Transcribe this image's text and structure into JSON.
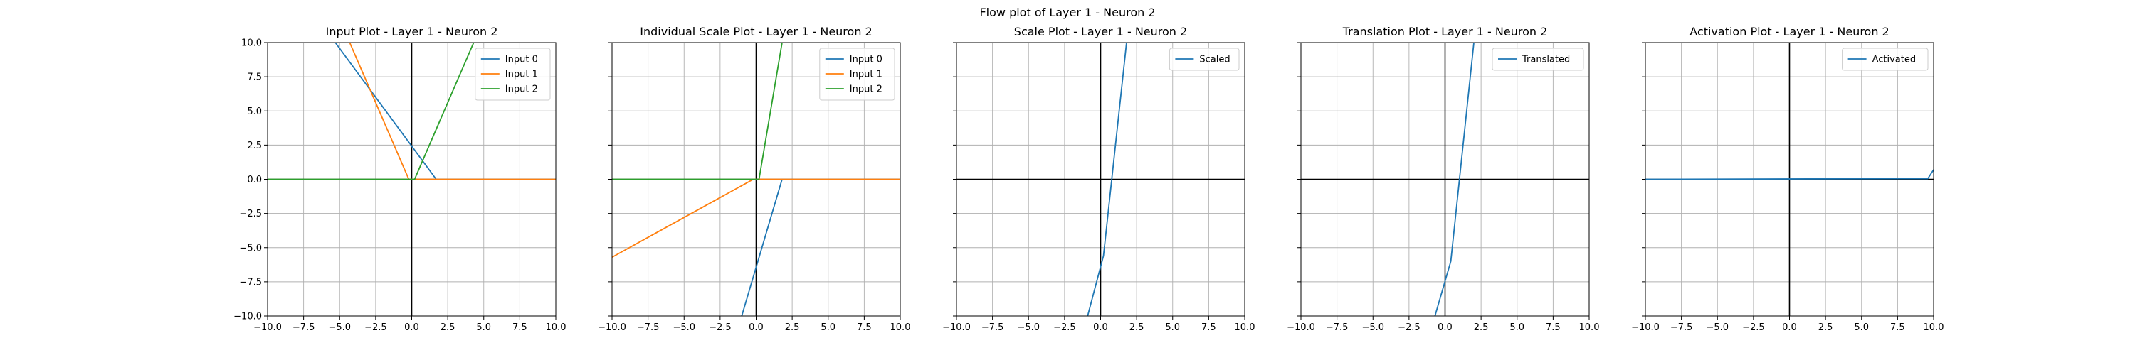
{
  "figure": {
    "suptitle": "Flow plot of Layer 1 - Neuron 2"
  },
  "colors": {
    "blue": "#1f77b4",
    "orange": "#ff7f0e",
    "green": "#2ca02c",
    "grid": "#b0b0b0",
    "axis_zero": "#000000"
  },
  "chart_data": [
    {
      "type": "line",
      "title": "Input Plot - Layer 1 - Neuron 2",
      "xlim": [
        -10,
        10
      ],
      "ylim": [
        -10,
        10
      ],
      "xticks": [
        "−10.0",
        "−7.5",
        "−5.0",
        "−2.5",
        "0.0",
        "2.5",
        "5.0",
        "7.5",
        "10.0"
      ],
      "yticks": [
        "−10.0",
        "−7.5",
        "−5.0",
        "−2.5",
        "0.0",
        "2.5",
        "5.0",
        "7.5",
        "10.0"
      ],
      "grid": true,
      "legend": "top-right",
      "series": [
        {
          "name": "Input 0",
          "color": "#1f77b4",
          "x": [
            -10,
            -5.3,
            1.7,
            10
          ],
          "y": [
            19,
            10,
            0,
            0
          ]
        },
        {
          "name": "Input 1",
          "color": "#ff7f0e",
          "x": [
            -10,
            -4.3,
            -0.2,
            10
          ],
          "y": [
            25,
            10,
            0,
            0
          ]
        },
        {
          "name": "Input 2",
          "color": "#2ca02c",
          "x": [
            -10,
            0.2,
            4.3,
            10
          ],
          "y": [
            0,
            0,
            10,
            24
          ]
        }
      ]
    },
    {
      "type": "line",
      "title": "Individual Scale Plot - Layer 1 - Neuron 2",
      "xlim": [
        -10,
        10
      ],
      "ylim": [
        -10,
        10
      ],
      "xticks": [
        "−10.0",
        "−7.5",
        "−5.0",
        "−2.5",
        "0.0",
        "2.5",
        "5.0",
        "7.5",
        "10.0"
      ],
      "yticks": [],
      "grid": true,
      "legend": "top-right",
      "series": [
        {
          "name": "Input 0",
          "color": "#1f77b4",
          "x": [
            -1.0,
            1.8,
            10
          ],
          "y": [
            -10,
            0,
            0
          ]
        },
        {
          "name": "Input 1",
          "color": "#ff7f0e",
          "x": [
            -10,
            -0.2,
            10
          ],
          "y": [
            -5.7,
            0,
            0
          ]
        },
        {
          "name": "Input 2",
          "color": "#2ca02c",
          "x": [
            -10,
            0.2,
            1.8
          ],
          "y": [
            0,
            0,
            10
          ]
        }
      ]
    },
    {
      "type": "line",
      "title": "Scale Plot - Layer 1 - Neuron 2",
      "xlim": [
        -10,
        10
      ],
      "ylim": [
        -10,
        10
      ],
      "xticks": [
        "−10.0",
        "−7.5",
        "−5.0",
        "−2.5",
        "0.0",
        "2.5",
        "5.0",
        "7.5",
        "10.0"
      ],
      "yticks": [],
      "grid": true,
      "legend": "top-right",
      "series": [
        {
          "name": "Scaled",
          "color": "#1f77b4",
          "x": [
            -0.9,
            0.2,
            1.8
          ],
          "y": [
            -10,
            -5.6,
            10
          ]
        }
      ]
    },
    {
      "type": "line",
      "title": "Translation Plot - Layer 1 - Neuron 2",
      "xlim": [
        -10,
        10
      ],
      "ylim": [
        -10,
        10
      ],
      "xticks": [
        "−10.0",
        "−7.5",
        "−5.0",
        "−2.5",
        "0.0",
        "2.5",
        "5.0",
        "7.5",
        "10.0"
      ],
      "yticks": [],
      "grid": true,
      "legend": "top-right",
      "series": [
        {
          "name": "Translated",
          "color": "#1f77b4",
          "x": [
            -0.7,
            0.4,
            2.0
          ],
          "y": [
            -10,
            -6.0,
            10
          ]
        }
      ]
    },
    {
      "type": "line",
      "title": "Activation Plot - Layer 1 - Neuron 2",
      "xlim": [
        -10,
        10
      ],
      "ylim": [
        -10,
        10
      ],
      "xticks": [
        "−10.0",
        "−7.5",
        "−5.0",
        "−2.5",
        "0.0",
        "2.5",
        "5.0",
        "7.5",
        "10.0"
      ],
      "yticks": [],
      "grid": true,
      "legend": "top-right",
      "series": [
        {
          "name": "Activated",
          "color": "#1f77b4",
          "x": [
            -10,
            9.6,
            10
          ],
          "y": [
            0,
            0.05,
            0.7
          ]
        }
      ]
    }
  ]
}
